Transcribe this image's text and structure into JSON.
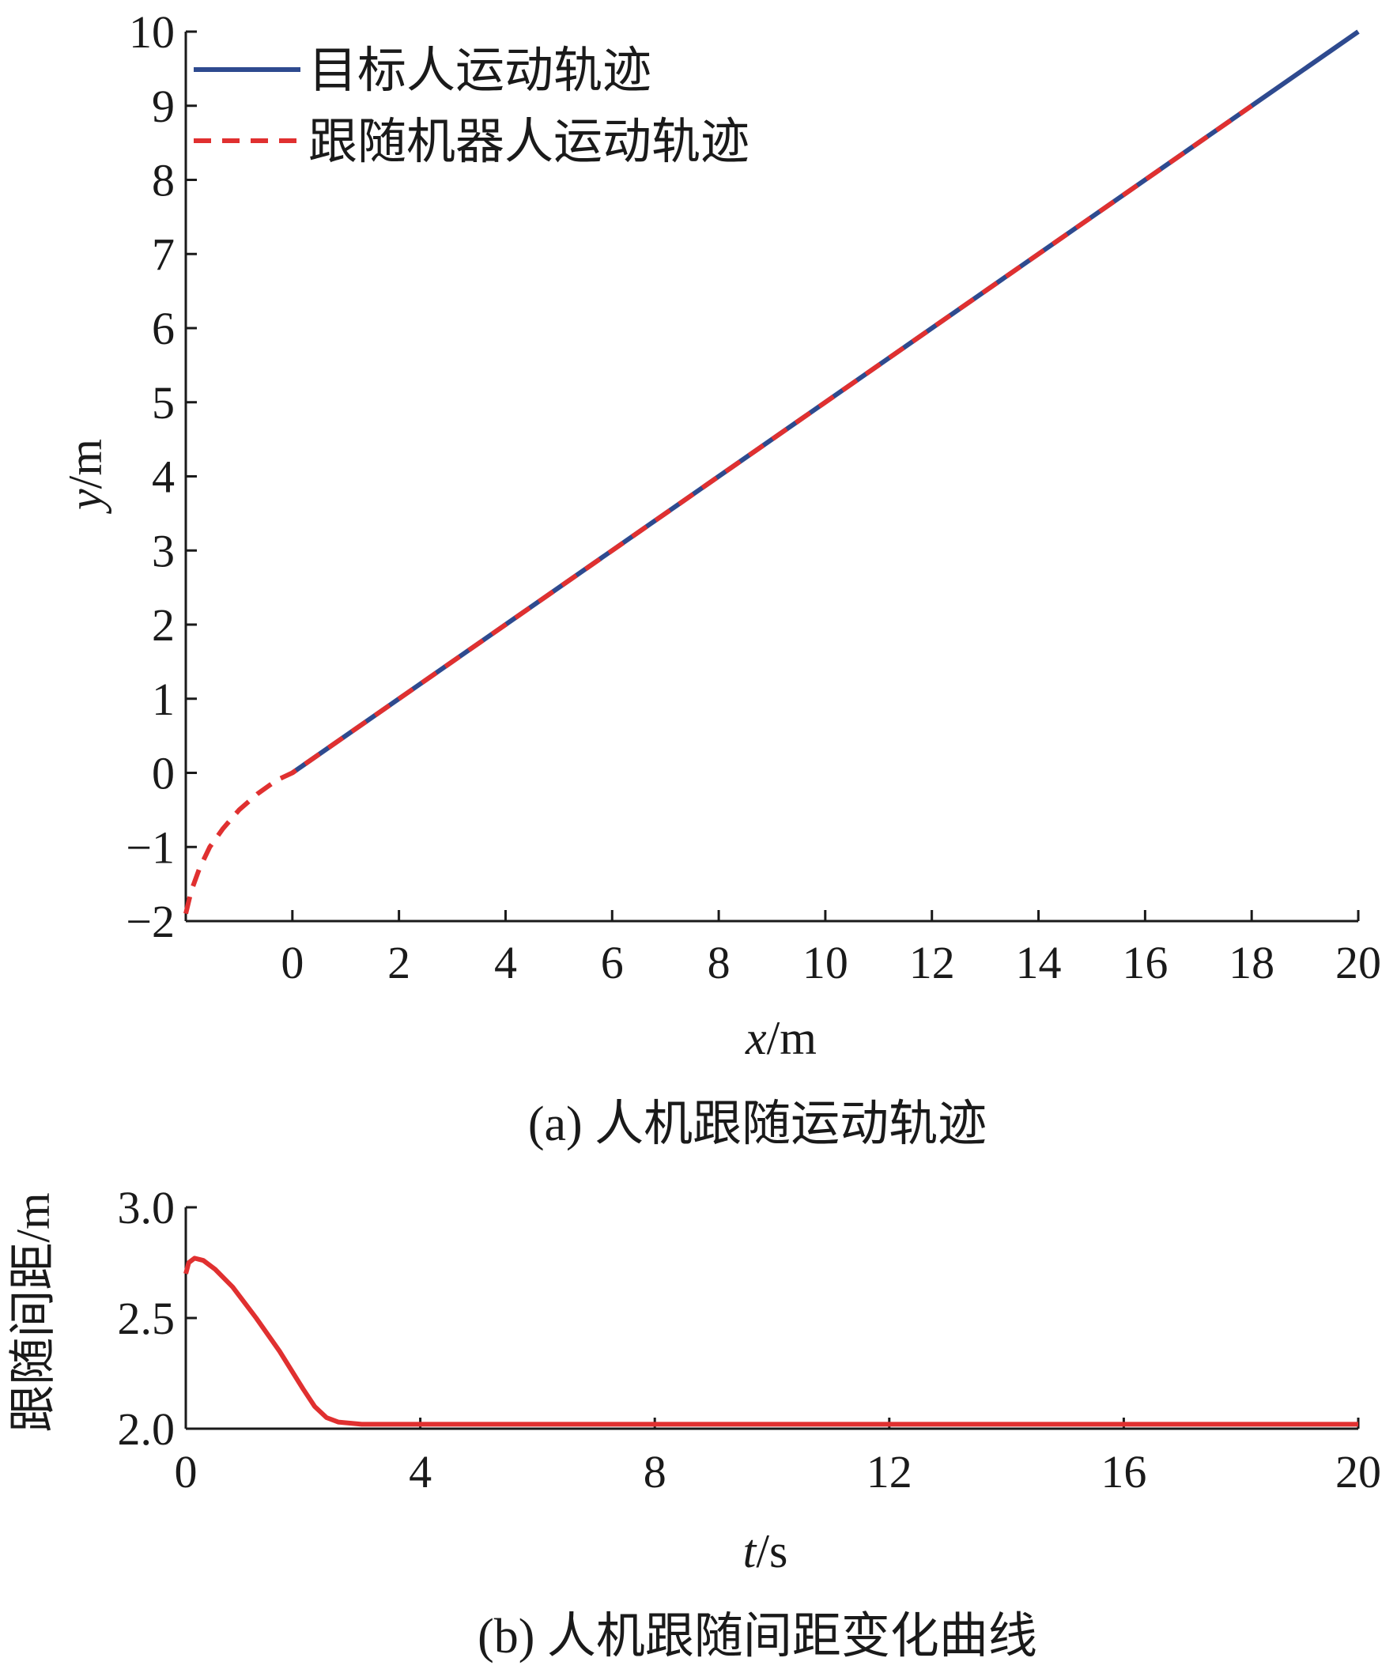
{
  "chart_data": [
    {
      "type": "line",
      "xlabel": {
        "var": "x",
        "unit": "/m"
      },
      "ylabel": {
        "var": "y",
        "unit": "/m"
      },
      "xlim": [
        -2,
        20
      ],
      "ylim": [
        -2,
        10
      ],
      "xticks": [
        "0",
        "2",
        "4",
        "6",
        "8",
        "10",
        "12",
        "14",
        "16",
        "18",
        "20"
      ],
      "yticks": [
        "−2",
        "−1",
        "0",
        "1",
        "2",
        "3",
        "4",
        "5",
        "6",
        "7",
        "8",
        "9",
        "10"
      ],
      "grid": false,
      "legend_placement": "top-left",
      "series": [
        {
          "name": "目标人运动轨迹",
          "color": "#2e4a8f",
          "style": "solid",
          "x": [
            0,
            20
          ],
          "y": [
            0,
            10
          ]
        },
        {
          "name": "跟随机器人运动轨迹",
          "color": "#e03030",
          "style": "dashed",
          "x": [
            -2.0,
            -1.9,
            -1.75,
            -1.55,
            -1.3,
            -1.0,
            -0.65,
            -0.3,
            0.0,
            2,
            4,
            6,
            8,
            10,
            12,
            14,
            16,
            18
          ],
          "y": [
            -1.9,
            -1.6,
            -1.3,
            -1.0,
            -0.75,
            -0.5,
            -0.28,
            -0.1,
            0.0,
            1,
            2,
            3,
            4,
            5,
            6,
            7,
            8,
            9
          ]
        }
      ],
      "caption": "(a) 人机跟随运动轨迹"
    },
    {
      "type": "line",
      "xlabel": {
        "var": "t",
        "unit": "/s"
      },
      "ylabel": {
        "var": "",
        "unit": "跟随间距/m"
      },
      "xlim": [
        0,
        20
      ],
      "ylim": [
        2.0,
        3.0
      ],
      "xticks": [
        "0",
        "4",
        "8",
        "12",
        "16",
        "20"
      ],
      "yticks": [
        "2.0",
        "2.5",
        "3.0"
      ],
      "grid": false,
      "series": [
        {
          "color": "#e03030",
          "style": "solid",
          "x": [
            0,
            0.05,
            0.15,
            0.3,
            0.5,
            0.8,
            1.2,
            1.6,
            2.0,
            2.2,
            2.4,
            2.6,
            3.0,
            4,
            8,
            12,
            16,
            20
          ],
          "y": [
            2.7,
            2.75,
            2.77,
            2.76,
            2.72,
            2.64,
            2.5,
            2.35,
            2.18,
            2.1,
            2.05,
            2.03,
            2.02,
            2.02,
            2.02,
            2.02,
            2.02,
            2.02
          ]
        }
      ],
      "caption": "(b) 人机跟随间距变化曲线"
    }
  ]
}
